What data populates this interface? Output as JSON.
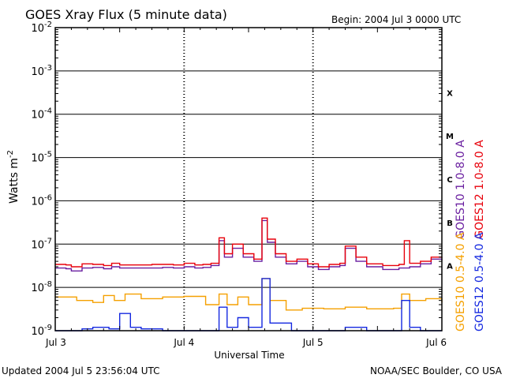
{
  "chart_data": {
    "type": "line",
    "title": "GOES Xray Flux (5 minute data)",
    "begin_label": "Begin:  2004 Jul 3 0000 UTC",
    "ylabel": "Watts m",
    "ylabel_sup": "-2",
    "xlabel": "Universal Time",
    "y_scale": "log",
    "ylim": [
      1e-09,
      0.01
    ],
    "y_ticks": [
      {
        "base": "10",
        "exp": "-2",
        "value": 0.01
      },
      {
        "base": "10",
        "exp": "-3",
        "value": 0.001
      },
      {
        "base": "10",
        "exp": "-4",
        "value": 0.0001
      },
      {
        "base": "10",
        "exp": "-5",
        "value": 1e-05
      },
      {
        "base": "10",
        "exp": "-6",
        "value": 1e-06
      },
      {
        "base": "10",
        "exp": "-7",
        "value": 1e-07
      },
      {
        "base": "10",
        "exp": "-8",
        "value": 1e-08
      },
      {
        "base": "10",
        "exp": "-9",
        "value": 1e-09
      }
    ],
    "xlim": [
      "2004-07-03T00:00",
      "2004-07-06T00:00"
    ],
    "x_ticks": [
      {
        "label": "Jul 3",
        "value": "2004-07-03T00:00"
      },
      {
        "label": "Jul 4",
        "value": "2004-07-04T00:00"
      },
      {
        "label": "Jul 5",
        "value": "2004-07-05T00:00"
      },
      {
        "label": "Jul 6",
        "value": "2004-07-06T00:00"
      }
    ],
    "flare_classes": [
      {
        "label": "X",
        "value": 0.000316
      },
      {
        "label": "M",
        "value": 3.16e-05
      },
      {
        "label": "C",
        "value": 3.16e-06
      },
      {
        "label": "B",
        "value": 3.16e-07
      },
      {
        "label": "A",
        "value": 3.16e-08
      }
    ],
    "grid": true,
    "series": [
      {
        "name": "GOES10 1.0-8.0 A",
        "color": "#6a1fa0",
        "x": [
          "2004-07-03T00:00",
          "2004-07-03T02:00",
          "2004-07-03T03:00",
          "2004-07-03T05:00",
          "2004-07-03T07:00",
          "2004-07-03T09:00",
          "2004-07-03T10:30",
          "2004-07-03T12:00",
          "2004-07-03T14:00",
          "2004-07-03T16:00",
          "2004-07-03T18:00",
          "2004-07-03T20:00",
          "2004-07-03T22:00",
          "2004-07-04T00:00",
          "2004-07-04T02:00",
          "2004-07-04T03:30",
          "2004-07-04T05:00",
          "2004-07-04T06:30",
          "2004-07-04T07:30",
          "2004-07-04T09:00",
          "2004-07-04T11:00",
          "2004-07-04T13:00",
          "2004-07-04T14:30",
          "2004-07-04T15:30",
          "2004-07-04T17:00",
          "2004-07-04T19:00",
          "2004-07-04T21:00",
          "2004-07-04T23:00",
          "2004-07-05T01:00",
          "2004-07-05T03:00",
          "2004-07-05T05:00",
          "2004-07-05T06:00",
          "2004-07-05T08:00",
          "2004-07-05T10:00",
          "2004-07-05T13:00",
          "2004-07-05T16:00",
          "2004-07-05T18:00",
          "2004-07-05T20:00",
          "2004-07-05T22:00",
          "2004-07-06T00:00"
        ],
        "values": [
          2.8e-08,
          2.7e-08,
          2.4e-08,
          2.8e-08,
          2.9e-08,
          2.7e-08,
          3e-08,
          2.8e-08,
          2.8e-08,
          2.8e-08,
          2.8e-08,
          2.9e-08,
          2.8e-08,
          3e-08,
          2.8e-08,
          2.9e-08,
          3.2e-08,
          1.2e-07,
          5e-08,
          8e-08,
          5e-08,
          4e-08,
          3.5e-07,
          1.1e-07,
          5e-08,
          3.5e-08,
          4e-08,
          3e-08,
          2.6e-08,
          3e-08,
          3.2e-08,
          8e-08,
          4e-08,
          3e-08,
          2.6e-08,
          2.8e-08,
          3e-08,
          3.5e-08,
          4.5e-08,
          4.2e-08
        ]
      },
      {
        "name": "GOES12 1.0-8.0 A",
        "color": "#e8000b",
        "x": [
          "2004-07-03T00:00",
          "2004-07-03T02:00",
          "2004-07-03T03:00",
          "2004-07-03T05:00",
          "2004-07-03T07:00",
          "2004-07-03T09:00",
          "2004-07-03T10:30",
          "2004-07-03T12:00",
          "2004-07-03T14:00",
          "2004-07-03T16:00",
          "2004-07-03T18:00",
          "2004-07-03T20:00",
          "2004-07-03T22:00",
          "2004-07-04T00:00",
          "2004-07-04T02:00",
          "2004-07-04T03:30",
          "2004-07-04T05:00",
          "2004-07-04T06:30",
          "2004-07-04T07:30",
          "2004-07-04T09:00",
          "2004-07-04T11:00",
          "2004-07-04T13:00",
          "2004-07-04T14:30",
          "2004-07-04T15:30",
          "2004-07-04T17:00",
          "2004-07-04T19:00",
          "2004-07-04T21:00",
          "2004-07-04T23:00",
          "2004-07-05T01:00",
          "2004-07-05T03:00",
          "2004-07-05T05:00",
          "2004-07-05T06:00",
          "2004-07-05T08:00",
          "2004-07-05T10:00",
          "2004-07-05T13:00",
          "2004-07-05T16:00",
          "2004-07-05T17:00",
          "2004-07-05T18:00",
          "2004-07-05T20:00",
          "2004-07-05T22:00",
          "2004-07-06T00:00"
        ],
        "values": [
          3.4e-08,
          3.3e-08,
          3e-08,
          3.5e-08,
          3.4e-08,
          3.2e-08,
          3.6e-08,
          3.3e-08,
          3.3e-08,
          3.3e-08,
          3.4e-08,
          3.4e-08,
          3.3e-08,
          3.6e-08,
          3.3e-08,
          3.4e-08,
          3.6e-08,
          1.4e-07,
          6e-08,
          1e-07,
          6e-08,
          4.5e-08,
          4e-07,
          1.3e-07,
          6e-08,
          4e-08,
          4.5e-08,
          3.5e-08,
          3e-08,
          3.4e-08,
          3.6e-08,
          9e-08,
          5e-08,
          3.5e-08,
          3.2e-08,
          3.4e-08,
          1.2e-07,
          3.6e-08,
          4e-08,
          5e-08,
          4.8e-08
        ]
      },
      {
        "name": "GOES10 0.5-4.0 A",
        "color": "#f5a000",
        "x": [
          "2004-07-03T00:00",
          "2004-07-03T04:00",
          "2004-07-03T07:00",
          "2004-07-03T09:00",
          "2004-07-03T11:00",
          "2004-07-03T13:00",
          "2004-07-03T16:00",
          "2004-07-03T20:00",
          "2004-07-04T00:00",
          "2004-07-04T04:00",
          "2004-07-04T06:30",
          "2004-07-04T08:00",
          "2004-07-04T10:00",
          "2004-07-04T12:00",
          "2004-07-04T14:30",
          "2004-07-04T16:00",
          "2004-07-04T19:00",
          "2004-07-04T22:00",
          "2004-07-05T02:00",
          "2004-07-05T06:00",
          "2004-07-05T10:00",
          "2004-07-05T15:00",
          "2004-07-05T16:30",
          "2004-07-05T18:00",
          "2004-07-05T21:00",
          "2004-07-06T00:00"
        ],
        "values": [
          6e-09,
          5e-09,
          4.5e-09,
          6.5e-09,
          5e-09,
          7e-09,
          5.5e-09,
          6e-09,
          6.2e-09,
          4e-09,
          7e-09,
          4e-09,
          6e-09,
          4e-09,
          1.6e-08,
          5e-09,
          3e-09,
          3.3e-09,
          3.2e-09,
          3.5e-09,
          3.2e-09,
          3.3e-09,
          7e-09,
          5e-09,
          5.5e-09,
          4.5e-09
        ]
      },
      {
        "name": "GOES12 0.5-4.0 A",
        "color": "#1428e0",
        "x": [
          "2004-07-03T00:00",
          "2004-07-03T03:00",
          "2004-07-03T05:00",
          "2004-07-03T07:00",
          "2004-07-03T10:00",
          "2004-07-03T12:00",
          "2004-07-03T14:00",
          "2004-07-03T16:00",
          "2004-07-03T20:00",
          "2004-07-04T00:00",
          "2004-07-04T04:00",
          "2004-07-04T06:30",
          "2004-07-04T08:00",
          "2004-07-04T10:00",
          "2004-07-04T12:00",
          "2004-07-04T14:30",
          "2004-07-04T16:00",
          "2004-07-04T20:00",
          "2004-07-05T02:00",
          "2004-07-05T06:00",
          "2004-07-05T10:00",
          "2004-07-05T15:00",
          "2004-07-05T16:30",
          "2004-07-05T18:00",
          "2004-07-05T20:00",
          "2004-07-06T00:00"
        ],
        "values": [
          1e-09,
          1e-09,
          1.1e-09,
          1.2e-09,
          1.1e-09,
          2.5e-09,
          1.2e-09,
          1.1e-09,
          1e-09,
          1e-09,
          1e-09,
          3.5e-09,
          1.2e-09,
          2e-09,
          1.2e-09,
          1.6e-08,
          1.5e-09,
          1e-09,
          1e-09,
          1.2e-09,
          1e-09,
          1e-09,
          5e-09,
          1.2e-09,
          1e-09,
          1e-09
        ]
      }
    ]
  },
  "footer": {
    "updated": "Updated 2004 Jul  5 23:56:04 UTC",
    "credit": "NOAA/SEC Boulder, CO USA"
  }
}
